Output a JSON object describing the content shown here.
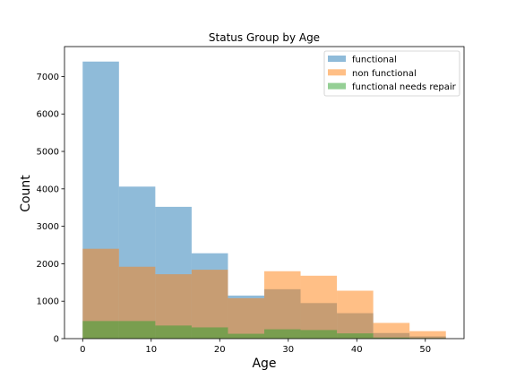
{
  "chart_data": {
    "type": "histogram",
    "title": "Status Group by Age",
    "xlabel": "Age",
    "ylabel": "Count",
    "xlim": [
      -2.65,
      55.65
    ],
    "ylim": [
      0,
      7800
    ],
    "xticks": [
      0,
      10,
      20,
      30,
      40,
      50
    ],
    "yticks": [
      0,
      1000,
      2000,
      3000,
      4000,
      5000,
      6000,
      7000
    ],
    "bin_edges": [
      0,
      5.3,
      10.6,
      15.9,
      21.2,
      26.5,
      31.8,
      37.1,
      42.4,
      47.7,
      53
    ],
    "legend_position": "upper right",
    "alpha": 0.5,
    "series": [
      {
        "name": "functional",
        "color": "#1f77b4",
        "values": [
          7400,
          4060,
          3520,
          2280,
          1150,
          1320,
          950,
          680,
          150,
          60
        ]
      },
      {
        "name": "non functional",
        "color": "#ff7f0e",
        "values": [
          2400,
          1920,
          1720,
          1840,
          1080,
          1800,
          1680,
          1280,
          420,
          200
        ]
      },
      {
        "name": "functional needs repair",
        "color": "#2ca02c",
        "values": [
          470,
          470,
          350,
          300,
          130,
          250,
          230,
          140,
          30,
          15
        ]
      }
    ]
  }
}
